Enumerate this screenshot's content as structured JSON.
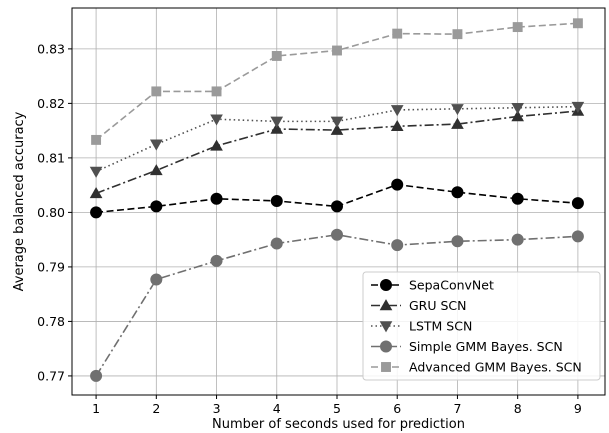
{
  "chart_data": {
    "type": "line",
    "xlabel": "Number of seconds used for prediction",
    "ylabel": "Average balanced accuracy",
    "x": [
      1,
      2,
      3,
      4,
      5,
      6,
      7,
      8,
      9
    ],
    "xlim": [
      0.6,
      9.45
    ],
    "ylim": [
      0.7665,
      0.8375
    ],
    "xticks": [
      "1",
      "2",
      "3",
      "4",
      "5",
      "6",
      "7",
      "8",
      "9"
    ],
    "yticks": [
      "0.77",
      "0.78",
      "0.79",
      "0.80",
      "0.81",
      "0.82",
      "0.83"
    ],
    "ytick_values": [
      0.77,
      0.78,
      0.79,
      0.8,
      0.81,
      0.82,
      0.83
    ],
    "grid": true,
    "legend_position": "bottom-right",
    "series": [
      {
        "name": "SepaConvNet",
        "color": "#000000",
        "line_style": "dashed",
        "marker": "circle",
        "values": [
          0.8,
          0.8011,
          0.8025,
          0.8021,
          0.8011,
          0.8051,
          0.8037,
          0.8025,
          0.8017
        ]
      },
      {
        "name": "GRU SCN",
        "color": "#303030",
        "line_style": "dashdot",
        "marker": "triangle-up",
        "values": [
          0.8035,
          0.8077,
          0.8122,
          0.8153,
          0.8151,
          0.8158,
          0.8162,
          0.8176,
          0.8186
        ]
      },
      {
        "name": "LSTM SCN",
        "color": "#505050",
        "line_style": "dotted",
        "marker": "triangle-down",
        "values": [
          0.8075,
          0.8125,
          0.8171,
          0.8167,
          0.8167,
          0.8188,
          0.819,
          0.8192,
          0.8194
        ]
      },
      {
        "name": "Simple GMM Bayes. SCN",
        "color": "#707070",
        "line_style": "dashdot",
        "marker": "circle",
        "values": [
          0.77,
          0.7877,
          0.7911,
          0.7943,
          0.7959,
          0.794,
          0.7947,
          0.795,
          0.7956
        ]
      },
      {
        "name": "Advanced GMM Bayes. SCN",
        "color": "#9a9a9a",
        "line_style": "dashed",
        "marker": "square",
        "values": [
          0.8133,
          0.8222,
          0.8222,
          0.8287,
          0.8297,
          0.8328,
          0.8327,
          0.834,
          0.8347
        ]
      }
    ]
  }
}
